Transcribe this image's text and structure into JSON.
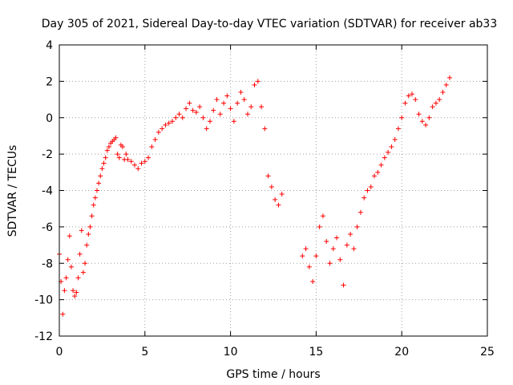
{
  "chart_data": {
    "type": "scatter",
    "title": "Day 305 of 2021, Sidereal Day-to-day VTEC variation (SDTVAR) for receiver ab33",
    "xlabel": "GPS time / hours",
    "ylabel": "SDTVAR / TECUs",
    "xlim": [
      0,
      25
    ],
    "ylim": [
      -12,
      4
    ],
    "xticks": [
      0,
      5,
      10,
      15,
      20,
      25
    ],
    "yticks": [
      -12,
      -10,
      -8,
      -6,
      -4,
      -2,
      0,
      2,
      4
    ],
    "grid": true,
    "marker": "+",
    "color": "#ff0000",
    "series": [
      {
        "x": [
          0.0,
          0.1,
          0.2,
          0.3,
          0.4,
          0.5,
          0.6,
          0.7,
          0.8,
          0.9,
          1.0,
          1.1,
          1.2,
          1.3,
          1.4,
          1.5,
          1.6,
          1.7,
          1.8,
          1.9,
          2.0,
          2.1,
          2.2,
          2.3,
          2.4,
          2.5,
          2.6,
          2.7,
          2.8,
          2.9,
          3.0,
          3.1,
          3.2,
          3.3,
          3.4,
          3.5,
          3.6,
          3.7,
          3.8,
          3.9,
          4.0,
          4.2,
          4.4,
          4.6,
          4.8,
          5.0,
          5.2,
          5.4,
          5.6,
          5.8,
          6.0,
          6.2,
          6.4,
          6.6,
          6.8,
          7.0,
          7.2,
          7.4,
          7.6,
          7.8,
          8.0,
          8.2,
          8.4,
          8.6,
          8.8,
          9.0,
          9.2,
          9.4,
          9.6,
          9.8,
          10.0,
          10.2,
          10.4,
          10.6,
          10.8,
          11.0,
          11.2,
          11.4,
          11.6,
          11.8,
          12.0,
          12.2,
          12.4,
          12.6,
          12.8,
          13.0,
          14.2,
          14.4,
          14.6,
          14.8,
          15.0,
          15.2,
          15.4,
          15.6,
          15.8,
          16.0,
          16.2,
          16.4,
          16.6,
          16.8,
          17.0,
          17.2,
          17.4,
          17.6,
          17.8,
          18.0,
          18.2,
          18.4,
          18.6,
          18.8,
          19.0,
          19.2,
          19.4,
          19.6,
          19.8,
          20.0,
          20.2,
          20.4,
          20.6,
          20.8,
          21.0,
          21.2,
          21.4,
          21.6,
          21.8,
          22.0,
          22.2,
          22.4,
          22.6,
          22.8
        ],
        "y": [
          -7.5,
          -9.0,
          -10.8,
          -9.5,
          -8.8,
          -7.8,
          -6.5,
          -8.2,
          -9.5,
          -9.8,
          -9.6,
          -8.8,
          -7.5,
          -6.2,
          -8.5,
          -8.0,
          -7.0,
          -6.4,
          -6.0,
          -5.4,
          -4.8,
          -4.4,
          -4.0,
          -3.6,
          -3.2,
          -2.8,
          -2.5,
          -2.2,
          -1.8,
          -1.6,
          -1.4,
          -1.3,
          -1.2,
          -1.1,
          -2.0,
          -2.2,
          -1.5,
          -1.6,
          -2.3,
          -2.0,
          -2.3,
          -2.4,
          -2.6,
          -2.8,
          -2.5,
          -2.4,
          -2.2,
          -1.6,
          -1.2,
          -0.8,
          -0.6,
          -0.4,
          -0.3,
          -0.2,
          0.0,
          0.2,
          0.0,
          0.5,
          0.8,
          0.4,
          0.3,
          0.6,
          0.0,
          -0.6,
          -0.2,
          0.4,
          1.0,
          0.2,
          0.8,
          1.2,
          0.5,
          -0.2,
          0.8,
          1.4,
          1.0,
          0.2,
          0.6,
          1.8,
          2.0,
          0.6,
          -0.6,
          -3.2,
          -3.8,
          -4.5,
          -4.8,
          -4.2,
          -7.6,
          -7.2,
          -8.2,
          -9.0,
          -7.6,
          -6.0,
          -5.4,
          -6.8,
          -8.0,
          -7.2,
          -6.6,
          -7.8,
          -9.2,
          -7.0,
          -6.4,
          -7.2,
          -6.0,
          -5.2,
          -4.4,
          -4.0,
          -3.8,
          -3.2,
          -3.0,
          -2.6,
          -2.2,
          -1.9,
          -1.6,
          -1.2,
          -0.6,
          0.0,
          0.8,
          1.2,
          1.3,
          1.0,
          0.2,
          -0.2,
          -0.4,
          0.0,
          0.6,
          0.8,
          1.0,
          1.4,
          1.8,
          2.2
        ]
      }
    ]
  }
}
